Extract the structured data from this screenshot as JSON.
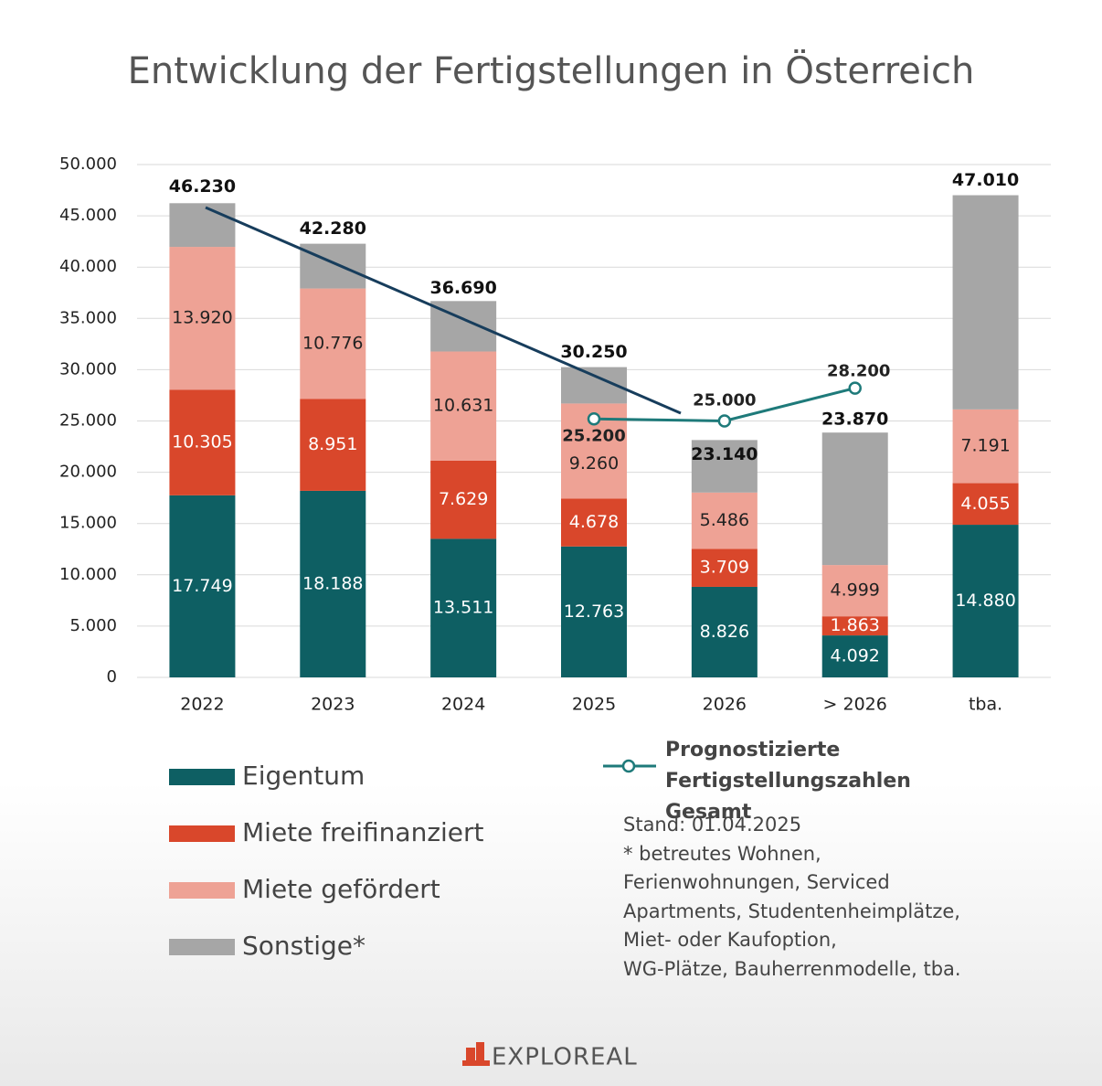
{
  "chart_data": {
    "type": "bar",
    "title": "Entwicklung der Fertigstellungen in Österreich",
    "categories": [
      "2022",
      "2023",
      "2024",
      "2025",
      "2026",
      "> 2026",
      "tba."
    ],
    "stacked": true,
    "ylim": [
      0,
      50000
    ],
    "yticks": [
      0,
      {
        "value": 5000,
        "label": "5.000"
      },
      {
        "value": 10000,
        "label": "10.000"
      },
      {
        "value": 15000,
        "label": "15.000"
      },
      {
        "value": 20000,
        "label": "20.000"
      },
      {
        "value": 25000,
        "label": "25.000"
      },
      {
        "value": 30000,
        "label": "30.000"
      },
      {
        "value": 35000,
        "label": "35.000"
      },
      {
        "value": 40000,
        "label": "40.000"
      },
      {
        "value": 45000,
        "label": "45.000"
      },
      {
        "value": 50000,
        "label": "50.000"
      }
    ],
    "grid": true,
    "series": [
      {
        "name": "Eigentum",
        "color": "#0e5f63",
        "values": [
          17749,
          18188,
          13511,
          12763,
          8826,
          4092,
          14880
        ],
        "value_labels": [
          "17.749",
          "18.188",
          "13.511",
          "12.763",
          "8.826",
          "4.092",
          "14.880"
        ]
      },
      {
        "name": "Miete freifinanziert",
        "color": "#d9472b",
        "values": [
          10305,
          8951,
          7629,
          4678,
          3709,
          1863,
          4055
        ],
        "value_labels": [
          "10.305",
          "8.951",
          "7.629",
          "4.678",
          "3.709",
          "1.863",
          "4.055"
        ]
      },
      {
        "name": "Miete gefördert",
        "color": "#eea295",
        "values": [
          13920,
          10776,
          10631,
          9260,
          5486,
          4999,
          7191
        ],
        "value_labels": [
          "13.920",
          "10.776",
          "10.631",
          "9.260",
          "5.486",
          "4.999",
          "7.191"
        ]
      },
      {
        "name": "Sonstige*",
        "color": "#a6a6a6",
        "values": [
          4256,
          4365,
          4919,
          3549,
          5119,
          12916,
          20884
        ]
      }
    ],
    "totals": {
      "values": [
        46230,
        42280,
        36690,
        30250,
        23140,
        23870,
        47010
      ],
      "value_labels": [
        "46.230",
        "42.280",
        "36.690",
        "30.250",
        "23.140",
        "23.870",
        "47.010"
      ]
    },
    "line": {
      "name": "Prognostizierte Fertigstellungszahlen Gesamt",
      "color": "#1e7a7a",
      "values": [
        null,
        null,
        null,
        25200,
        25000,
        28200,
        null
      ],
      "value_labels": [
        null,
        null,
        null,
        "25.200",
        "25.000",
        "28.200",
        null
      ]
    },
    "footnote": [
      "Stand: 01.04.2025",
      "* betreutes Wohnen,",
      "Ferienwohnungen, Serviced",
      "Apartments, Studentenheimplätze,",
      "Miet- oder Kaufoption,",
      "WG-Plätze, Bauherrenmodelle, tba."
    ],
    "logo": "EXPLOREAL"
  }
}
